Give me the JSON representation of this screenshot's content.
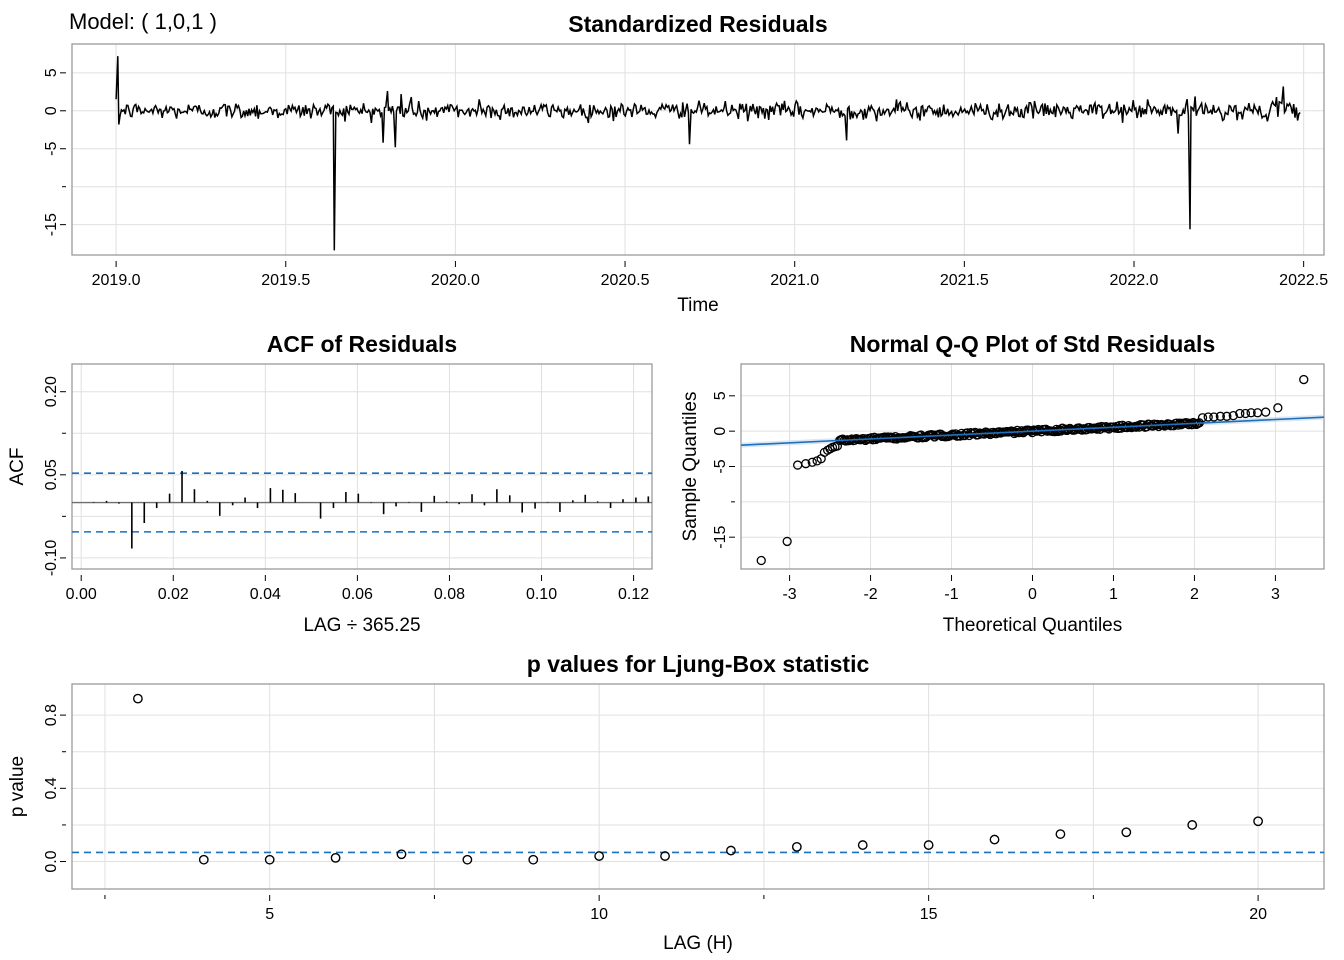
{
  "model_label": "Model: ( 1,0,1 )",
  "chart_data": [
    {
      "id": "std_residuals",
      "type": "line",
      "title": "Standardized Residuals",
      "xlabel": "Time",
      "ylabel": "",
      "xlim": [
        2018.87,
        2022.56
      ],
      "ylim": [
        -19.0,
        8.8
      ],
      "xticks": [
        2019.0,
        2019.5,
        2020.0,
        2020.5,
        2021.0,
        2021.5,
        2022.0,
        2022.5
      ],
      "xtick_labels": [
        "2019.0",
        "2019.5",
        "2020.0",
        "2020.5",
        "2021.0",
        "2021.5",
        "2022.0",
        "2022.5"
      ],
      "yticks": [
        5,
        0,
        -5,
        -15
      ],
      "ytick_labels": [
        "5",
        "0",
        "-5",
        "-15"
      ],
      "y_minor_ticks": [
        -10
      ],
      "grid": true,
      "series": {
        "start": 2019.0,
        "end": 2022.49,
        "noise_scale": 0.55,
        "spikes": [
          {
            "x": 2019.005,
            "y": 7.2
          },
          {
            "x": 2019.008,
            "y": -1.8
          },
          {
            "x": 2019.643,
            "y": -18.4
          },
          {
            "x": 2019.64,
            "y": 0.6
          },
          {
            "x": 2019.787,
            "y": -4.2
          },
          {
            "x": 2019.8,
            "y": 2.6
          },
          {
            "x": 2019.823,
            "y": -4.8
          },
          {
            "x": 2019.84,
            "y": 2.2
          },
          {
            "x": 2019.87,
            "y": 1.8
          },
          {
            "x": 2019.915,
            "y": -1.3
          },
          {
            "x": 2020.07,
            "y": 1.5
          },
          {
            "x": 2020.69,
            "y": -4.4
          },
          {
            "x": 2020.67,
            "y": 1.1
          },
          {
            "x": 2021.153,
            "y": -3.9
          },
          {
            "x": 2021.3,
            "y": 1.5
          },
          {
            "x": 2021.95,
            "y": 1.2
          },
          {
            "x": 2022.04,
            "y": 1.5
          },
          {
            "x": 2022.13,
            "y": -3.0
          },
          {
            "x": 2022.165,
            "y": -15.6
          },
          {
            "x": 2022.18,
            "y": 1.9
          },
          {
            "x": 2022.44,
            "y": 3.2
          },
          {
            "x": 2022.42,
            "y": 1.8
          }
        ]
      }
    },
    {
      "id": "acf",
      "type": "bar",
      "title": "ACF of Residuals",
      "xlabel": "LAG ÷ 365.25",
      "ylabel": "ACF",
      "xlim": [
        -0.002,
        0.124
      ],
      "ylim": [
        -0.12,
        0.25
      ],
      "xticks": [
        0.0,
        0.02,
        0.04,
        0.06,
        0.08,
        0.1,
        0.12
      ],
      "xtick_labels": [
        "0.00",
        "0.02",
        "0.04",
        "0.06",
        "0.08",
        "0.10",
        "0.12"
      ],
      "yticks": [
        0.2,
        0.05,
        -0.1
      ],
      "ytick_labels": [
        "0.20",
        "0.05",
        "-0.10"
      ],
      "y_minor_ticks": [
        -0.025,
        0.125
      ],
      "bounds": [
        0.053,
        -0.053
      ],
      "lags": [
        0.0027,
        0.0055,
        0.0082,
        0.011,
        0.0137,
        0.0164,
        0.0192,
        0.0219,
        0.0246,
        0.0274,
        0.0301,
        0.0329,
        0.0356,
        0.0383,
        0.0411,
        0.0438,
        0.0465,
        0.0493,
        0.052,
        0.0548,
        0.0575,
        0.0602,
        0.063,
        0.0657,
        0.0684,
        0.0712,
        0.0739,
        0.0767,
        0.0794,
        0.0821,
        0.0849,
        0.0876,
        0.0903,
        0.0931,
        0.0958,
        0.0986,
        0.1013,
        0.104,
        0.1068,
        0.1095,
        0.1122,
        0.115,
        0.1177,
        0.1205,
        0.1232
      ],
      "values": [
        0.001,
        0.003,
        -0.002,
        -0.083,
        -0.037,
        -0.01,
        0.016,
        0.057,
        0.024,
        0.003,
        -0.024,
        -0.005,
        0.009,
        -0.01,
        0.026,
        0.023,
        0.017,
        0.0,
        -0.029,
        -0.01,
        0.019,
        0.016,
        -0.001,
        -0.021,
        -0.007,
        0.001,
        -0.017,
        0.012,
        0.002,
        -0.003,
        0.015,
        -0.005,
        0.024,
        0.013,
        -0.018,
        -0.011,
        0.001,
        -0.017,
        0.004,
        0.014,
        0.002,
        -0.01,
        0.006,
        0.009,
        0.011
      ]
    },
    {
      "id": "qq",
      "type": "scatter",
      "title": "Normal Q-Q Plot of Std Residuals",
      "xlabel": "Theoretical Quantiles",
      "ylabel": "Sample Quantiles",
      "xlim": [
        -3.6,
        3.6
      ],
      "ylim": [
        -19.5,
        9.5
      ],
      "xticks": [
        -3,
        -2,
        -1,
        0,
        1,
        2,
        3
      ],
      "xtick_labels": [
        "-3",
        "-2",
        "-1",
        "0",
        "1",
        "2",
        "3"
      ],
      "yticks": [
        5,
        0,
        -5,
        -15
      ],
      "ytick_labels": [
        "5",
        "0",
        "-5",
        "-15"
      ],
      "y_minor_ticks": [
        -10
      ],
      "line": {
        "intercept": 0.0,
        "slope": 0.55
      },
      "band_width": 0.35,
      "low_points": [
        {
          "x": -3.35,
          "y": -18.3
        },
        {
          "x": -3.03,
          "y": -15.6
        },
        {
          "x": -2.9,
          "y": -4.8
        },
        {
          "x": -2.8,
          "y": -4.6
        },
        {
          "x": -2.72,
          "y": -4.4
        },
        {
          "x": -2.66,
          "y": -4.2
        },
        {
          "x": -2.61,
          "y": -3.9
        },
        {
          "x": -2.57,
          "y": -3.0
        },
        {
          "x": -2.53,
          "y": -2.7
        },
        {
          "x": -2.5,
          "y": -2.5
        },
        {
          "x": -2.47,
          "y": -2.3
        },
        {
          "x": -2.44,
          "y": -2.2
        },
        {
          "x": -2.41,
          "y": -2.1
        }
      ],
      "high_points": [
        {
          "x": 2.1,
          "y": 1.9
        },
        {
          "x": 2.17,
          "y": 2.0
        },
        {
          "x": 2.24,
          "y": 2.0
        },
        {
          "x": 2.32,
          "y": 2.1
        },
        {
          "x": 2.4,
          "y": 2.1
        },
        {
          "x": 2.48,
          "y": 2.2
        },
        {
          "x": 2.56,
          "y": 2.5
        },
        {
          "x": 2.63,
          "y": 2.5
        },
        {
          "x": 2.7,
          "y": 2.6
        },
        {
          "x": 2.78,
          "y": 2.6
        },
        {
          "x": 2.88,
          "y": 2.7
        },
        {
          "x": 3.03,
          "y": 3.3
        },
        {
          "x": 3.35,
          "y": 7.3
        }
      ],
      "body_range": [
        -2.38,
        2.06
      ],
      "body_points": 240,
      "body_spread": 0.22
    },
    {
      "id": "ljung_box",
      "type": "scatter",
      "title": "p values for Ljung-Box statistic",
      "xlabel": "LAG (H)",
      "ylabel": "p value",
      "xlim": [
        2.0,
        21.0
      ],
      "ylim": [
        -0.15,
        0.97
      ],
      "xticks": [
        5,
        10,
        15,
        20
      ],
      "xtick_labels": [
        "5",
        "10",
        "15",
        "20"
      ],
      "x_minor_ticks": [
        2.5,
        7.5,
        12.5,
        17.5
      ],
      "yticks": [
        0.0,
        0.4,
        0.8
      ],
      "ytick_labels": [
        "0.0",
        "0.4",
        "0.8"
      ],
      "y_minor_ticks": [
        0.2,
        0.6
      ],
      "significance": 0.05,
      "x": [
        3,
        4,
        5,
        6,
        7,
        8,
        9,
        10,
        11,
        12,
        13,
        14,
        15,
        16,
        17,
        18,
        19,
        20
      ],
      "y": [
        0.89,
        0.01,
        0.01,
        0.02,
        0.04,
        0.01,
        0.01,
        0.03,
        0.03,
        0.06,
        0.08,
        0.09,
        0.09,
        0.12,
        0.15,
        0.16,
        0.2,
        0.22
      ]
    }
  ]
}
